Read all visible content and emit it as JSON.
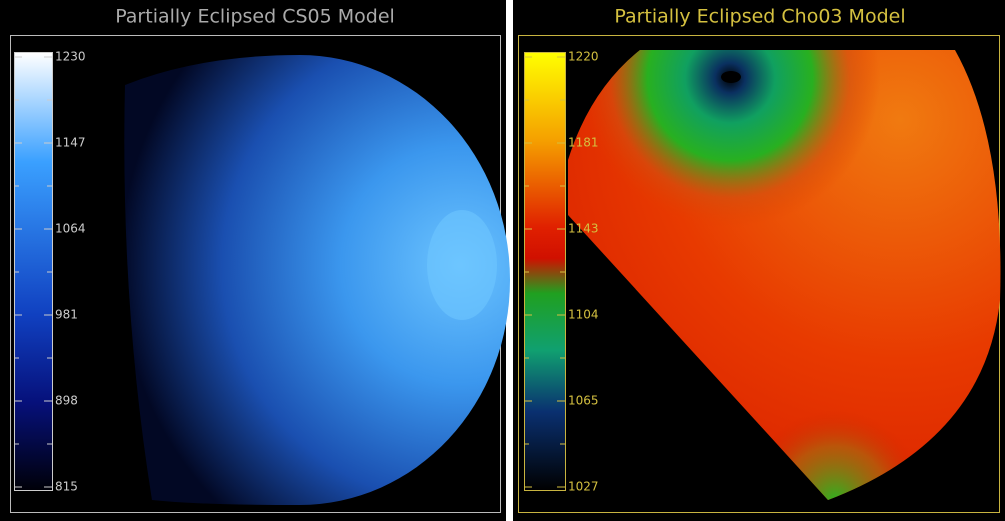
{
  "panels": [
    {
      "title": "Partially Eclipsed CS05 Model",
      "colorbar_ticks": [
        "1230",
        "1147",
        "1064",
        "981",
        "898",
        "815"
      ]
    },
    {
      "title": "Partially Eclipsed Cho03 Model",
      "colorbar_ticks": [
        "1220",
        "1181",
        "1143",
        "1104",
        "1065",
        "1027"
      ]
    }
  ]
}
